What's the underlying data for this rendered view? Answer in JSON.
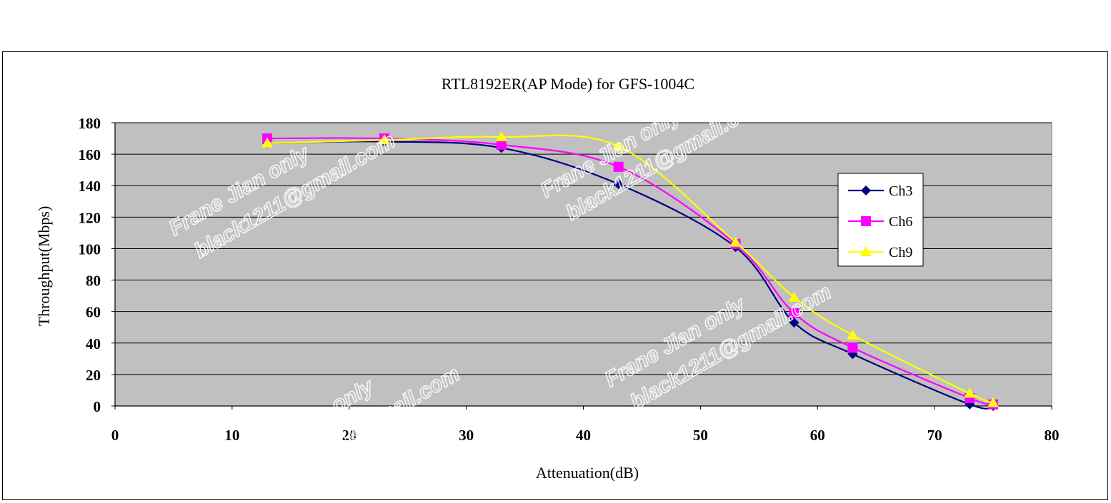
{
  "chart_data": {
    "type": "line",
    "title": "RTL8192ER(AP Mode) for GFS-1004C",
    "xlabel": "Attenuation(dB)",
    "ylabel": "Throughput(Mbps)",
    "xlim": [
      0,
      80
    ],
    "ylim": [
      0,
      180
    ],
    "xticks": [
      0,
      10,
      20,
      30,
      40,
      50,
      60,
      70,
      80
    ],
    "yticks": [
      0,
      20,
      40,
      60,
      80,
      100,
      120,
      140,
      160,
      180
    ],
    "grid": "horizontal",
    "legend_position": "right",
    "plot_background": "#c0c0c0",
    "series": [
      {
        "name": "Ch3",
        "color": "#000080",
        "marker": "diamond",
        "x": [
          13,
          23,
          33,
          43,
          53,
          58,
          63,
          73,
          75
        ],
        "y": [
          167,
          168,
          164,
          141,
          101,
          53,
          33,
          1,
          0
        ]
      },
      {
        "name": "Ch6",
        "color": "#ff00ff",
        "marker": "square",
        "x": [
          13,
          23,
          33,
          43,
          53,
          58,
          63,
          73,
          75
        ],
        "y": [
          170,
          170,
          166,
          152,
          103,
          59,
          37,
          5,
          1
        ]
      },
      {
        "name": "Ch9",
        "color": "#ffff00",
        "marker": "triangle",
        "x": [
          13,
          23,
          33,
          43,
          53,
          58,
          63,
          73,
          75
        ],
        "y": [
          167,
          169,
          171,
          165,
          104,
          69,
          45,
          8,
          2
        ]
      }
    ]
  },
  "watermark": {
    "line1": "Frane Jian only",
    "line2": "black1211@gmail.com"
  }
}
